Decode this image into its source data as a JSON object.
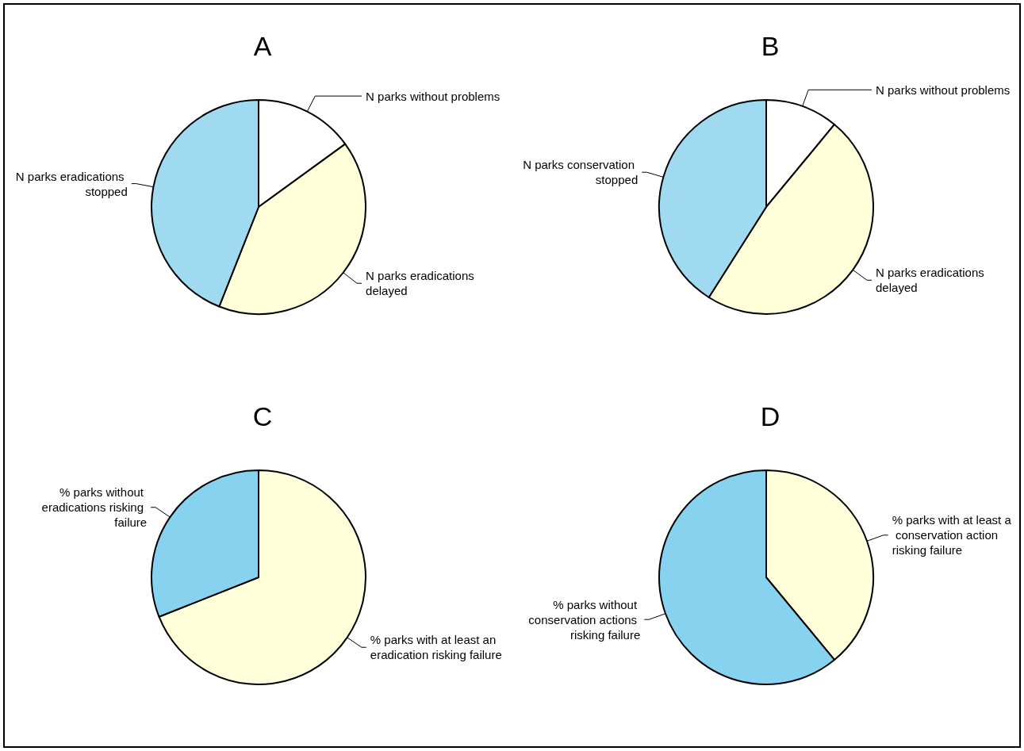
{
  "chart_data": [
    {
      "type": "pie",
      "title": "A",
      "categories": [
        "N parks without problems",
        "N parks eradications delayed",
        "N parks eradications stopped"
      ],
      "values": [
        15,
        41,
        44
      ],
      "colors": [
        "#ffffff",
        "#ffffd9",
        "#9fdaf1"
      ]
    },
    {
      "type": "pie",
      "title": "B",
      "categories": [
        "N parks without problems",
        "N parks eradications delayed",
        "N parks conservation stopped"
      ],
      "values": [
        11,
        48,
        41
      ],
      "colors": [
        "#ffffff",
        "#ffffd9",
        "#9fdaf1"
      ]
    },
    {
      "type": "pie",
      "title": "C",
      "categories": [
        "% parks with at least an eradication risking failure",
        "% parks without eradications risking failure"
      ],
      "values": [
        69,
        31
      ],
      "colors": [
        "#ffffd9",
        "#87d3ef"
      ]
    },
    {
      "type": "pie",
      "title": "D",
      "categories": [
        "% parks with at least a conservation action risking failure",
        "% parks without conservation actions risking failure"
      ],
      "values": [
        39,
        61
      ],
      "colors": [
        "#ffffd9",
        "#87d3ef"
      ]
    }
  ]
}
